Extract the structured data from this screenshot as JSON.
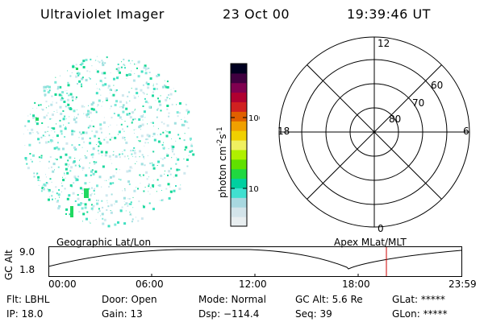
{
  "header": {
    "title": "Ultraviolet Imager",
    "date": "23 Oct 00",
    "time": "19:39:46 UT"
  },
  "colorbar": {
    "label": "photon cm-2s-1",
    "ticks": [
      "100",
      "10"
    ],
    "colors": [
      "#e8eef0",
      "#d3e4ea",
      "#a8d8e0",
      "#40e0d0",
      "#00d0a0",
      "#20d840",
      "#60e000",
      "#b0f000",
      "#f0f060",
      "#f0d000",
      "#f0a000",
      "#e06000",
      "#d02020",
      "#b00030",
      "#800050",
      "#400040",
      "#000020"
    ]
  },
  "polar_plot": {
    "mlt_labels": [
      "12",
      "18",
      "6",
      "0"
    ],
    "lat_labels": [
      "60",
      "70",
      "80"
    ]
  },
  "altitude_plot": {
    "left_title": "Geographic Lat/Lon",
    "right_title": "Apex MLat/MLT",
    "ylabel": "GC Alt",
    "ytick_top": "9.0",
    "ytick_bottom": "1.8",
    "xticks": [
      "00:00",
      "06:00",
      "12:00",
      "18:00",
      "23:59"
    ],
    "marker_color": "#cc0000"
  },
  "status": {
    "flt": "Flt: LBHL",
    "ip": "IP: 18.0",
    "door": "Door: Open",
    "gain": "Gain: 13",
    "mode": "Mode: Normal",
    "dsp": "Dsp: −114.4",
    "gcalt": "GC Alt: 5.6 Re",
    "seq": "Seq: 39",
    "glat": "GLat: *****",
    "glon": "GLon: *****"
  }
}
